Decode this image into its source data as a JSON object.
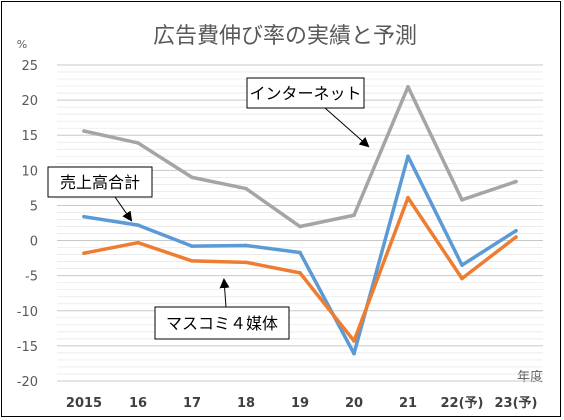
{
  "chart_data": {
    "type": "line",
    "title": "広告費伸び率の実績と予測",
    "ylabel": "%",
    "xlabel": "年度",
    "categories": [
      "2015",
      "16",
      "17",
      "18",
      "19",
      "20",
      "21",
      "22(予)",
      "23(予)"
    ],
    "ylim": [
      -20,
      25
    ],
    "yticks": [
      25,
      20,
      15,
      10,
      5,
      0,
      -5,
      -10,
      -15,
      -20
    ],
    "grid": true,
    "series": [
      {
        "name": "インターネット",
        "color": "#A5A5A5",
        "values": [
          15.6,
          13.9,
          9.0,
          7.4,
          2.0,
          3.6,
          21.9,
          5.8,
          8.4
        ]
      },
      {
        "name": "売上高合計",
        "color": "#5B9BD5",
        "values": [
          3.4,
          2.2,
          -0.8,
          -0.7,
          -1.7,
          -16.1,
          12.0,
          -3.5,
          1.4
        ]
      },
      {
        "name": "マスコミ４媒体",
        "color": "#ED7D31",
        "values": [
          -1.8,
          -0.3,
          -2.9,
          -3.1,
          -4.6,
          -14.3,
          6.1,
          -5.4,
          0.5
        ]
      }
    ]
  }
}
